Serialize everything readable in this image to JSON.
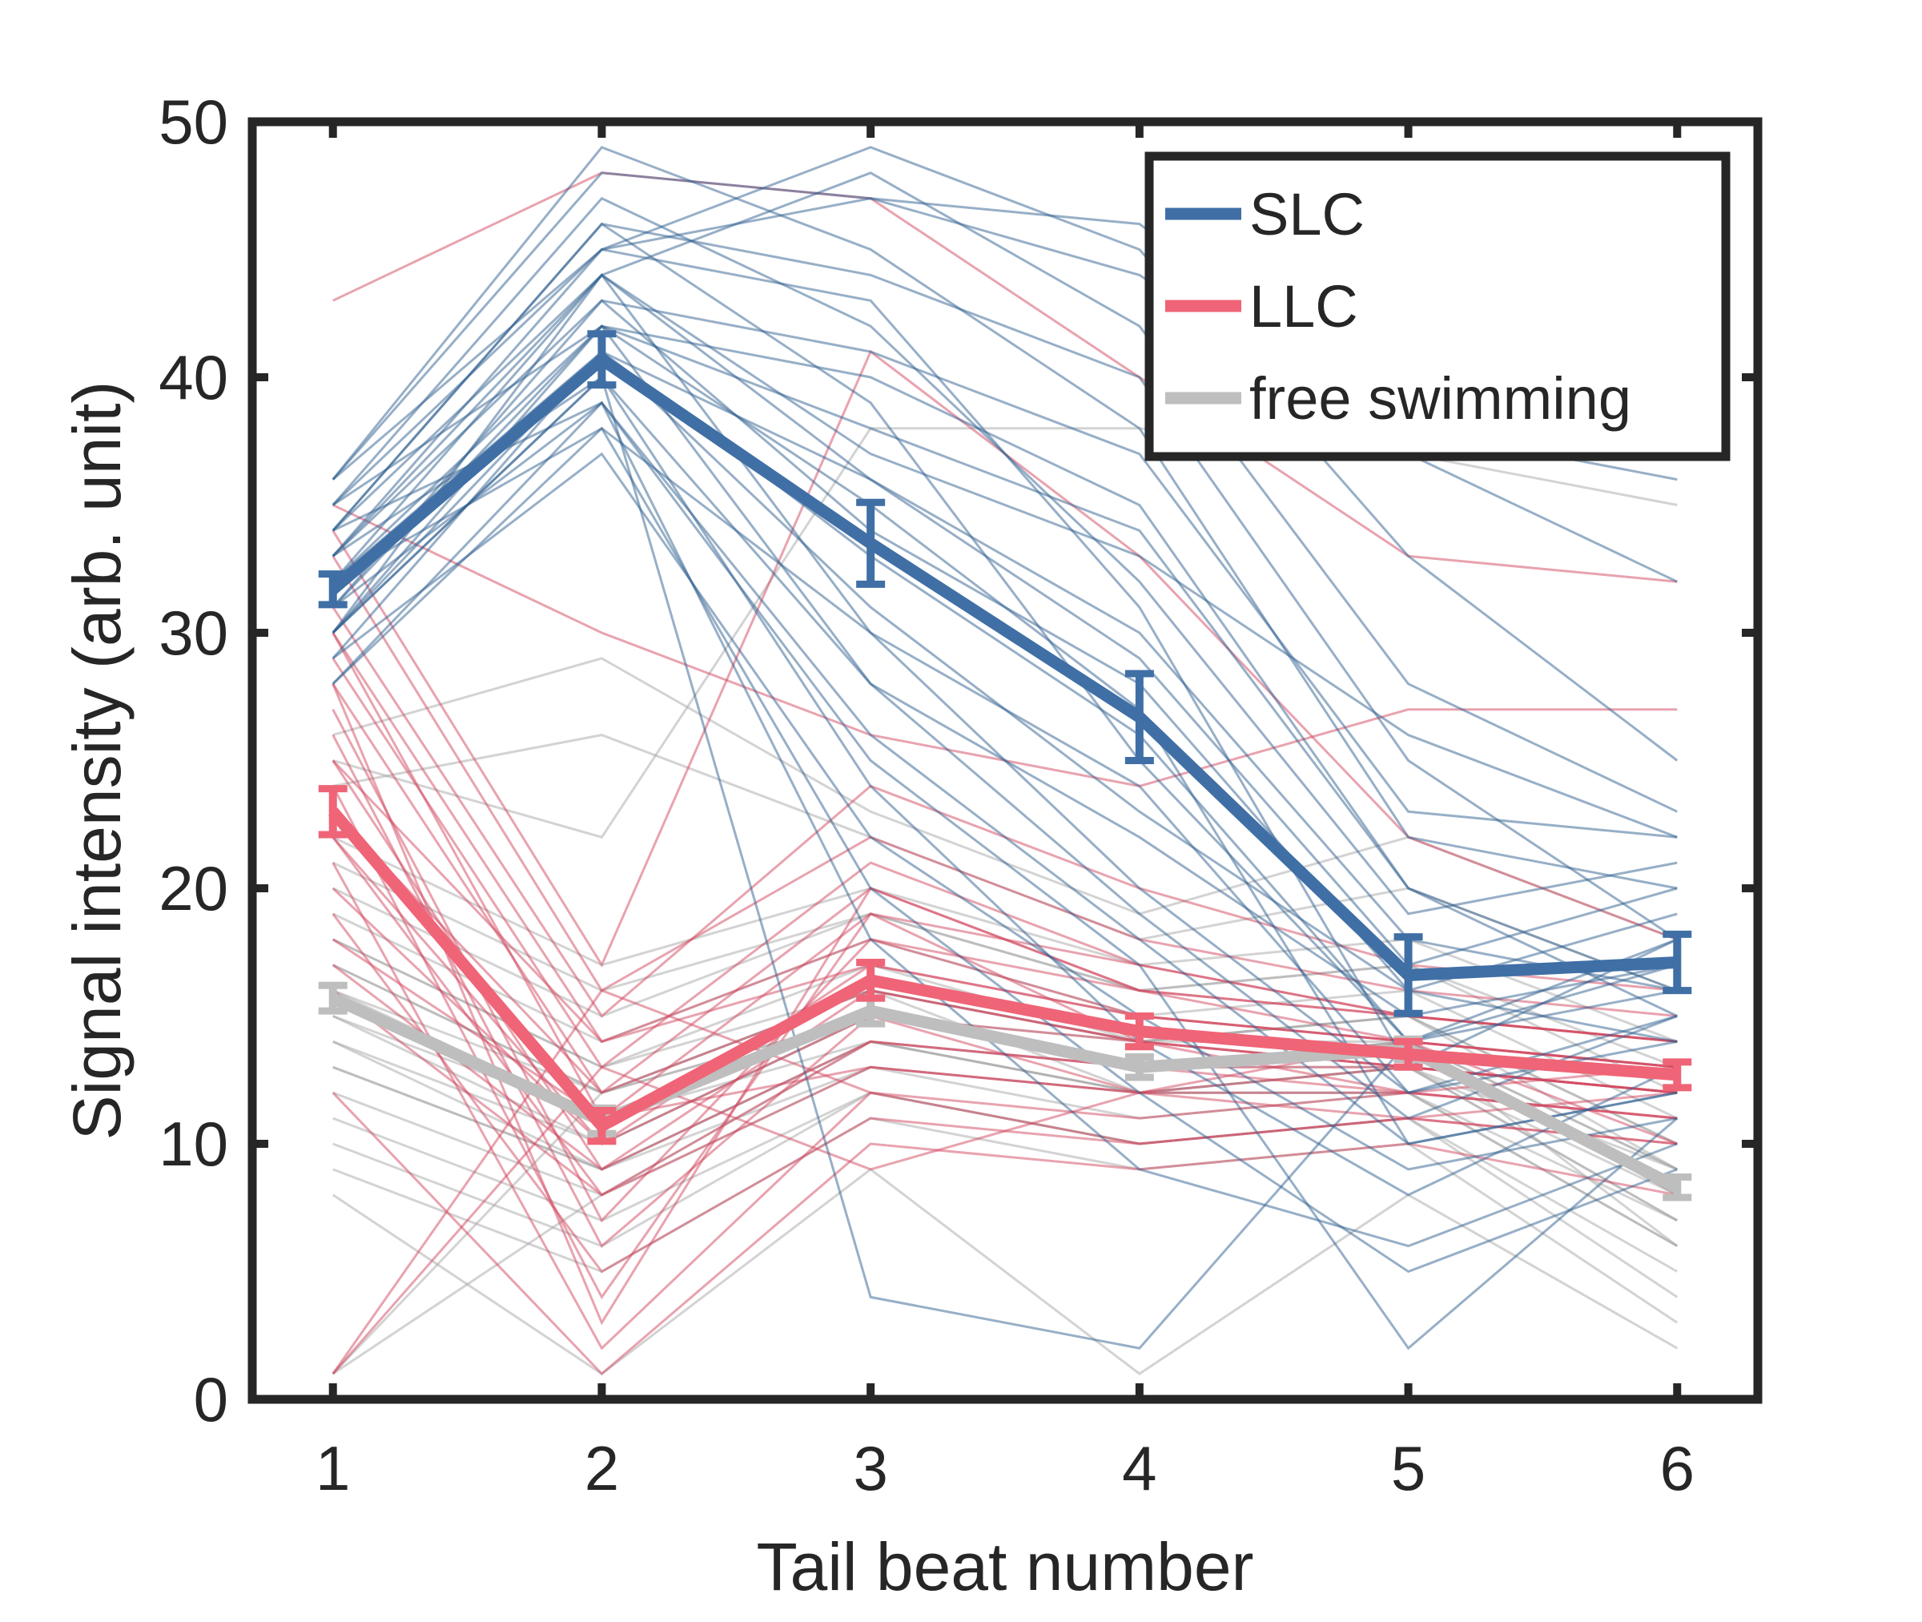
{
  "chart_data": {
    "type": "line",
    "title": "",
    "xlabel": "Tail beat number",
    "ylabel": "Signal intensity (arb. unit)",
    "x": [
      1,
      2,
      3,
      4,
      5,
      6
    ],
    "xticks": [
      "1",
      "2",
      "3",
      "4",
      "5",
      "6"
    ],
    "xlim": [
      0.7,
      6.3
    ],
    "ylim": [
      0,
      50
    ],
    "yticks": [
      "0",
      "10",
      "20",
      "30",
      "40",
      "50"
    ],
    "grid": false,
    "legend_position": "top-right",
    "series": [
      {
        "name": "SLC",
        "color": "#3f6fa5",
        "values": [
          31.7,
          40.7,
          33.5,
          26.7,
          16.6,
          17.1
        ],
        "error": [
          0.6,
          1.0,
          1.6,
          1.7,
          1.5,
          1.1
        ]
      },
      {
        "name": "LLC",
        "color": "#ef6476",
        "values": [
          23.0,
          10.7,
          16.4,
          14.4,
          13.5,
          12.7
        ],
        "error": [
          0.9,
          0.6,
          0.7,
          0.6,
          0.5,
          0.5
        ]
      },
      {
        "name": "free swimming",
        "color": "#bebebe",
        "values": [
          15.7,
          10.9,
          15.2,
          13.0,
          13.7,
          8.3
        ],
        "error": [
          0.5,
          0.5,
          0.5,
          0.4,
          0.4,
          0.4
        ]
      }
    ],
    "individual_traces": {
      "description": "Faint individual trial traces behind the means",
      "SLC": [
        [
          35,
          45,
          47,
          46,
          38,
          36
        ],
        [
          33,
          44,
          48,
          42,
          28,
          23
        ],
        [
          30,
          42,
          40,
          35,
          20,
          15
        ],
        [
          34,
          46,
          44,
          40,
          25,
          18
        ],
        [
          32,
          41,
          36,
          30,
          18,
          16
        ],
        [
          28,
          38,
          30,
          24,
          12,
          14
        ],
        [
          36,
          49,
          45,
          38,
          22,
          20
        ],
        [
          30,
          40,
          28,
          22,
          15,
          17
        ],
        [
          33,
          43,
          34,
          28,
          16,
          19
        ],
        [
          31,
          39,
          26,
          18,
          10,
          12
        ],
        [
          35,
          47,
          42,
          32,
          19,
          21
        ],
        [
          29,
          37,
          22,
          15,
          9,
          11
        ],
        [
          32,
          42,
          38,
          34,
          20,
          16
        ],
        [
          34,
          44,
          30,
          20,
          12,
          15
        ],
        [
          30,
          41,
          33,
          26,
          14,
          18
        ],
        [
          36,
          45,
          49,
          45,
          33,
          25
        ],
        [
          28,
          39,
          18,
          9,
          6,
          10
        ],
        [
          33,
          40,
          24,
          14,
          8,
          13
        ],
        [
          31,
          43,
          41,
          37,
          23,
          22
        ],
        [
          35,
          42,
          28,
          19,
          11,
          15
        ],
        [
          30,
          44,
          36,
          29,
          17,
          20
        ],
        [
          32,
          38,
          20,
          12,
          5,
          9
        ],
        [
          34,
          46,
          39,
          25,
          14,
          17
        ],
        [
          29,
          41,
          31,
          23,
          16,
          14
        ],
        [
          33,
          45,
          43,
          31,
          13,
          18
        ],
        [
          31,
          42,
          35,
          27,
          10,
          12
        ],
        [
          36,
          48,
          47,
          44,
          37,
          32
        ],
        [
          30,
          40,
          4,
          2,
          14,
          16
        ],
        [
          32,
          44,
          37,
          33,
          26,
          22
        ],
        [
          34,
          39,
          25,
          17,
          2,
          11
        ]
      ],
      "LLC": [
        [
          43,
          48,
          47,
          40,
          33,
          32
        ],
        [
          30,
          14,
          18,
          15,
          14,
          13
        ],
        [
          25,
          9,
          16,
          14,
          13,
          12
        ],
        [
          28,
          12,
          20,
          16,
          15,
          14
        ],
        [
          22,
          8,
          14,
          13,
          12,
          11
        ],
        [
          35,
          30,
          26,
          24,
          27,
          27
        ],
        [
          20,
          10,
          17,
          15,
          14,
          13
        ],
        [
          26,
          6,
          15,
          12,
          13,
          12
        ],
        [
          33,
          16,
          22,
          18,
          16,
          15
        ],
        [
          18,
          11,
          13,
          12,
          11,
          10
        ],
        [
          24,
          4,
          19,
          14,
          12,
          13
        ],
        [
          29,
          13,
          21,
          17,
          15,
          14
        ],
        [
          21,
          2,
          12,
          11,
          12,
          11
        ],
        [
          31,
          15,
          24,
          20,
          17,
          16
        ],
        [
          17,
          9,
          14,
          13,
          13,
          12
        ],
        [
          27,
          7,
          18,
          16,
          14,
          13
        ],
        [
          23,
          12,
          16,
          14,
          13,
          12
        ],
        [
          34,
          17,
          41,
          33,
          22,
          18
        ],
        [
          19,
          5,
          11,
          10,
          11,
          10
        ],
        [
          25,
          14,
          17,
          15,
          14,
          13
        ],
        [
          22,
          10,
          15,
          14,
          13,
          12
        ],
        [
          28,
          3,
          20,
          16,
          15,
          14
        ],
        [
          16,
          8,
          13,
          12,
          12,
          11
        ],
        [
          30,
          11,
          19,
          17,
          15,
          14
        ],
        [
          1,
          13,
          9,
          12,
          14,
          10
        ],
        [
          1,
          16,
          12,
          10,
          11,
          12
        ],
        [
          12,
          1,
          10,
          9,
          10,
          8
        ]
      ],
      "free swimming": [
        [
          16,
          11,
          15,
          13,
          14,
          8
        ],
        [
          18,
          13,
          17,
          14,
          15,
          9
        ],
        [
          14,
          9,
          14,
          12,
          13,
          7
        ],
        [
          20,
          15,
          19,
          16,
          17,
          12
        ],
        [
          12,
          8,
          13,
          11,
          12,
          6
        ],
        [
          22,
          17,
          20,
          17,
          18,
          14
        ],
        [
          10,
          6,
          12,
          10,
          11,
          5
        ],
        [
          17,
          12,
          16,
          14,
          15,
          10
        ],
        [
          15,
          10,
          15,
          13,
          14,
          8
        ],
        [
          24,
          26,
          22,
          18,
          20,
          16
        ],
        [
          13,
          9,
          13,
          12,
          12,
          7
        ],
        [
          19,
          14,
          18,
          15,
          16,
          11
        ],
        [
          11,
          7,
          12,
          10,
          11,
          4
        ],
        [
          26,
          29,
          23,
          19,
          22,
          18
        ],
        [
          16,
          12,
          15,
          13,
          14,
          9
        ],
        [
          21,
          16,
          19,
          16,
          17,
          13
        ],
        [
          9,
          5,
          11,
          9,
          10,
          3
        ],
        [
          18,
          13,
          16,
          14,
          15,
          10
        ],
        [
          1,
          8,
          14,
          13,
          14,
          6
        ],
        [
          1,
          12,
          16,
          12,
          13,
          9
        ],
        [
          8,
          1,
          9,
          1,
          8,
          2
        ],
        [
          15,
          11,
          14,
          12,
          13,
          8
        ],
        [
          14,
          10,
          15,
          13,
          13,
          7
        ],
        [
          17,
          12,
          15,
          14,
          14,
          9
        ],
        [
          25,
          22,
          38,
          38,
          37,
          35
        ],
        [
          13,
          9,
          14,
          12,
          12,
          6
        ]
      ]
    }
  }
}
